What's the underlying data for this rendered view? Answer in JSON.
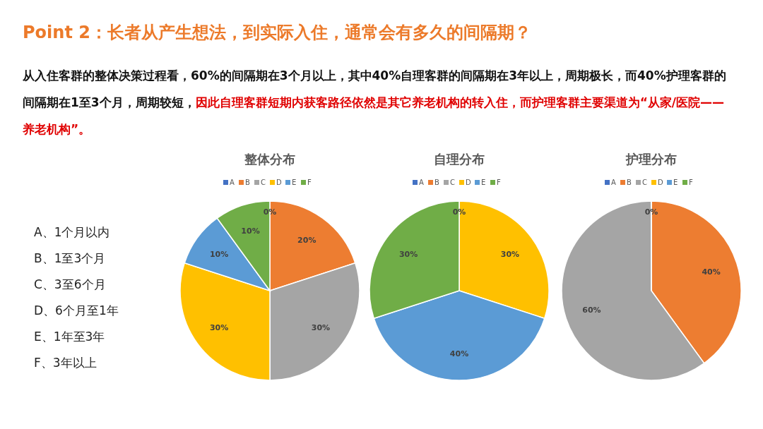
{
  "chart_data": [
    {
      "type": "other",
      "title": "Point 2：长者从产生想法，到实际入住，通常会有多久的间隔期？",
      "subtitle": "从入住客群的整体决策过程看，60%的间隔期在3个月以上，其中40%自理客群的间隔期在3年以上，周期极长，而40%护理客群的间隔期在1至3个月，周期较短，",
      "annotations": [
        "因此自理客群短期内获客路径依然是其它养老机构的转入住，而护理客群主要渠道为“从家/医院——养老机构”。",
        "A、1个月以内",
        "B、1至3个月",
        "C、3至6个月",
        "D、6个月至1年",
        "E、1年至3年",
        "F、3年以上"
      ]
    },
    {
      "type": "pie",
      "title": "整体分布",
      "categories": [
        "A",
        "B",
        "C",
        "D",
        "E",
        "F"
      ],
      "values": [
        0,
        20,
        30,
        30,
        10,
        10
      ],
      "colors": [
        "#4472c4",
        "#ed7d31",
        "#a5a5a5",
        "#ffc000",
        "#5b9bd5",
        "#70ad47"
      ],
      "value_labels": [
        "0%",
        "20%",
        "30%",
        "30%",
        "10%",
        "10%"
      ],
      "legend": "top"
    },
    {
      "type": "pie",
      "title": "自理分布",
      "categories": [
        "A",
        "B",
        "C",
        "D",
        "E",
        "F"
      ],
      "values": [
        0,
        0,
        0,
        30,
        40,
        30
      ],
      "colors": [
        "#4472c4",
        "#ed7d31",
        "#a5a5a5",
        "#ffc000",
        "#5b9bd5",
        "#70ad47"
      ],
      "value_labels": [
        "0%",
        null,
        null,
        "30%",
        "40%",
        "30%"
      ],
      "legend": "top"
    },
    {
      "type": "pie",
      "title": "护理分布",
      "categories": [
        "A",
        "B",
        "C",
        "D",
        "E",
        "F"
      ],
      "values": [
        0,
        40,
        60,
        0,
        0,
        0
      ],
      "colors": [
        "#4472c4",
        "#ed7d31",
        "#a5a5a5",
        "#ffc000",
        "#5b9bd5",
        "#70ad47"
      ],
      "value_labels": [
        "0%",
        "40%",
        "60%",
        null,
        null,
        null
      ],
      "legend": "top"
    }
  ]
}
